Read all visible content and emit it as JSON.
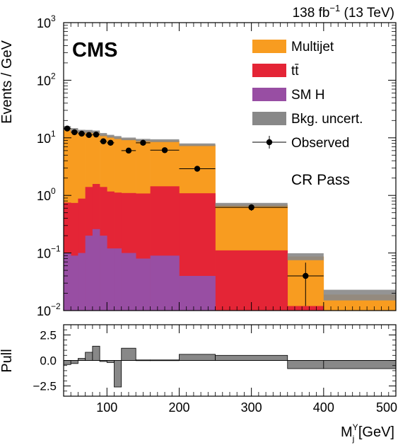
{
  "chart_data": [
    {
      "type": "bar",
      "panel": "main",
      "scale": "log",
      "ylabel": "Events / GeV",
      "ylim": [
        0.01,
        1000
      ],
      "xlim": [
        40,
        500
      ],
      "ytick_labels": [
        {
          "value": 0.01,
          "base": "10",
          "exp": "−2"
        },
        {
          "value": 0.1,
          "base": "10",
          "exp": "−1"
        },
        {
          "value": 1,
          "base": "10",
          "exp": "0"
        },
        {
          "value": 10,
          "base": "10",
          "exp": "1"
        },
        {
          "value": 100,
          "base": "10",
          "exp": "2"
        },
        {
          "value": 1000,
          "base": "10",
          "exp": "3"
        }
      ],
      "bin_edges": [
        40,
        50,
        60,
        70,
        80,
        90,
        100,
        110,
        120,
        140,
        160,
        200,
        250,
        350,
        400,
        500
      ],
      "stack": [
        {
          "name": "SM H",
          "color": "#984ea3",
          "values": [
            0.1,
            0.09,
            0.1,
            0.2,
            0.26,
            0.2,
            0.12,
            0.12,
            0.1,
            0.08,
            0.09,
            0.04,
            0.001,
            0.001,
            0.001
          ]
        },
        {
          "name": "tt̄",
          "color": "#e42536",
          "values": [
            0.65,
            0.65,
            0.78,
            1.2,
            1.32,
            1.2,
            1.05,
            1.0,
            1.0,
            1.0,
            1.35,
            1.05,
            0.11,
            0.011,
            0.001
          ]
        },
        {
          "name": "Multijet",
          "color": "#f89c20",
          "values": [
            14,
            13,
            12,
            11.5,
            11,
            10,
            9.5,
            9,
            8.5,
            8,
            7.5,
            6.5,
            0.58,
            0.075,
            0.017
          ]
        }
      ],
      "uncertainty": {
        "name": "Bkg. uncert.",
        "color": "#888888",
        "values": [
          1.2,
          1.0,
          0.9,
          0.8,
          0.8,
          0.7,
          0.6,
          0.6,
          0.5,
          0.5,
          0.5,
          0.4,
          0.05,
          0.012,
          0.004
        ]
      },
      "observed": {
        "name": "Observed",
        "points": [
          {
            "x": 45,
            "y": 14.5,
            "xerr": 5,
            "yerr": 1.2
          },
          {
            "x": 55,
            "y": 12.5,
            "xerr": 5,
            "yerr": 1.1
          },
          {
            "x": 65,
            "y": 11.8,
            "xerr": 5,
            "yerr": 1.1
          },
          {
            "x": 75,
            "y": 11.2,
            "xerr": 5,
            "yerr": 1.1
          },
          {
            "x": 85,
            "y": 11.4,
            "xerr": 5,
            "yerr": 1.1
          },
          {
            "x": 95,
            "y": 8.7,
            "xerr": 5,
            "yerr": 0.9
          },
          {
            "x": 105,
            "y": 8.2,
            "xerr": 5,
            "yerr": 0.9
          },
          {
            "x": 130,
            "y": 6.0,
            "xerr": 10,
            "yerr": 0.5
          },
          {
            "x": 150,
            "y": 8.2,
            "xerr": 10,
            "yerr": 0.6
          },
          {
            "x": 180,
            "y": 6.1,
            "xerr": 20,
            "yerr": 0.4
          },
          {
            "x": 225,
            "y": 2.9,
            "xerr": 25,
            "yerr": 0.25
          },
          {
            "x": 300,
            "y": 0.62,
            "xerr": 50,
            "yerr": 0.08
          },
          {
            "x": 375,
            "y": 0.04,
            "xerr": 25,
            "yerr": 0.028
          }
        ]
      },
      "labels": {
        "experiment": "CMS",
        "lumi": "138 fb",
        "lumi_exp": "−1",
        "energy": " (13 TeV)",
        "region": "CR Pass"
      },
      "legend": {
        "placement": "top-right",
        "entries": [
          {
            "label": "Multijet",
            "kind": "box",
            "color": "#f89c20"
          },
          {
            "label": "tt̄",
            "kind": "box",
            "color": "#e42536"
          },
          {
            "label": "SM H",
            "kind": "box",
            "color": "#984ea3"
          },
          {
            "label": "Bkg. uncert.",
            "kind": "box",
            "color": "#888888"
          },
          {
            "label": "Observed",
            "kind": "marker",
            "color": "#000000"
          }
        ]
      }
    },
    {
      "type": "bar",
      "panel": "pull",
      "ylabel": "Pull",
      "xlabel_base": "M",
      "xlabel_sub": "j",
      "xlabel_sup": "Y",
      "xlabel_unit": " [GeV]",
      "ylim": [
        -3.5,
        3.5
      ],
      "yticks": [
        -2.5,
        0,
        2.5
      ],
      "ytick_labels": [
        "−2.5",
        "0.0",
        "2.5"
      ],
      "xticks": [
        100,
        200,
        300,
        400,
        500
      ],
      "xtick_labels": [
        "100",
        "200",
        "300",
        "400",
        "500"
      ],
      "color": "#888888",
      "bin_edges": [
        40,
        50,
        60,
        70,
        80,
        90,
        100,
        110,
        120,
        140,
        160,
        200,
        250,
        350,
        400,
        500
      ],
      "values": [
        -0.4,
        -0.3,
        0.2,
        0.8,
        1.4,
        -0.1,
        -0.2,
        -2.6,
        1.2,
        0.05,
        0.05,
        0.6,
        0.5,
        -0.8,
        -0.8
      ]
    }
  ]
}
